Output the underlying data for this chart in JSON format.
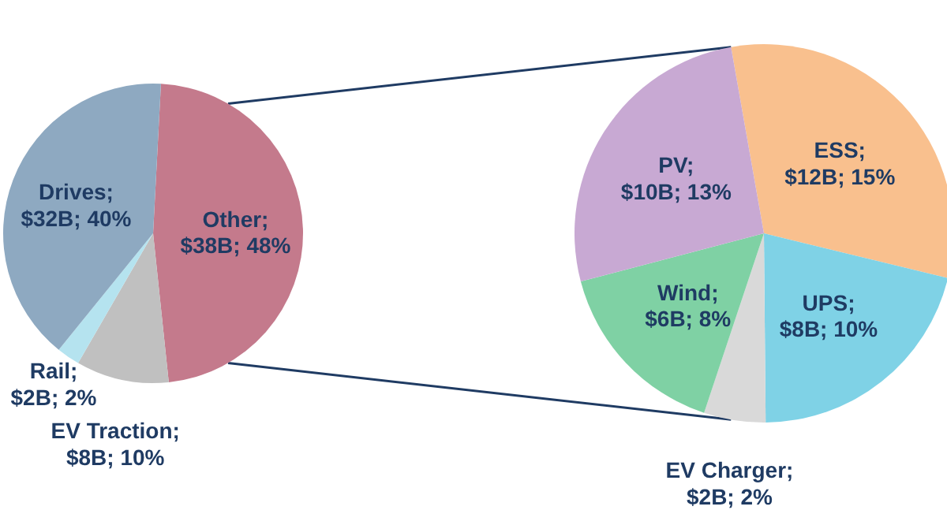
{
  "chart_data": [
    {
      "type": "pie",
      "categories": [
        "Other; $38B; 48%",
        "EV Traction; $8B; 10%",
        "Rail; $2B; 2%",
        "Drives; $32B; 40%"
      ],
      "values": [
        38,
        8,
        2,
        32
      ],
      "colors": [
        "#c47a8c",
        "#c0c0c0",
        "#b5e3ef",
        "#8ea9c1"
      ]
    },
    {
      "type": "pie",
      "categories": [
        "ESS; $12B; 15%",
        "UPS; $8B; 10%",
        "EV Charger; $2B; 2%",
        "Wind; $6B; 8%",
        "PV; $10B; 13%"
      ],
      "values": [
        12,
        8,
        2,
        6,
        10
      ],
      "colors": [
        "#f9c08e",
        "#7fd2e6",
        "#d9d9d9",
        "#7fd1a4",
        "#c8a9d3"
      ]
    }
  ]
}
